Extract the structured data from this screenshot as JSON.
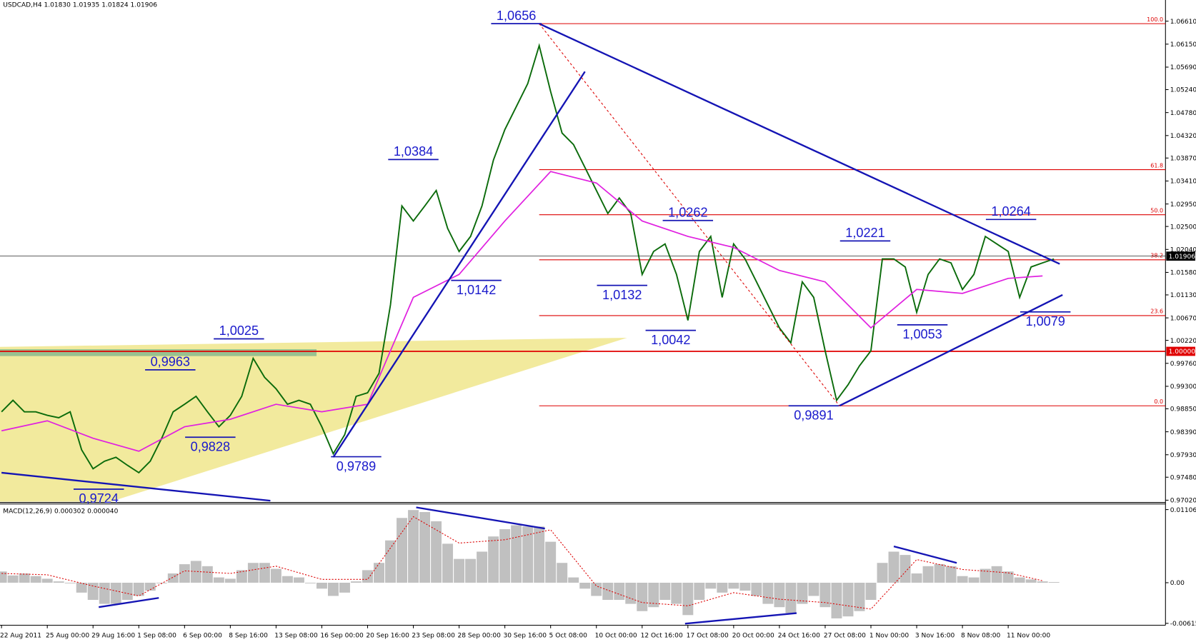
{
  "chart_data": [
    {
      "type": "line",
      "title": "USDCAD,H4  1.01830 1.01935 1.01824 1.01906",
      "xlim": [
        0,
        407
      ],
      "ylim": [
        0.9699,
        1.0685
      ],
      "yticks": [
        {
          "value": 1.0661,
          "label": "1.06610"
        },
        {
          "value": 1.0615,
          "label": "1.06150"
        },
        {
          "value": 1.0569,
          "label": "1.05690"
        },
        {
          "value": 1.0524,
          "label": "1.05240"
        },
        {
          "value": 1.0478,
          "label": "1.04780"
        },
        {
          "value": 1.0432,
          "label": "1.04320"
        },
        {
          "value": 1.0387,
          "label": "1.03870"
        },
        {
          "value": 1.0341,
          "label": "1.03410"
        },
        {
          "value": 1.0295,
          "label": "1.02950"
        },
        {
          "value": 1.025,
          "label": "1.02500"
        },
        {
          "value": 1.0204,
          "label": "1.02040"
        },
        {
          "value": 1.0158,
          "label": "1.01580"
        },
        {
          "value": 1.0113,
          "label": "1.01130"
        },
        {
          "value": 1.0067,
          "label": "1.00670"
        },
        {
          "value": 1.0022,
          "label": "1.00220"
        },
        {
          "value": 0.9976,
          "label": "0.99760"
        },
        {
          "value": 0.993,
          "label": "0.99300"
        },
        {
          "value": 0.9885,
          "label": "0.98850"
        },
        {
          "value": 0.9839,
          "label": "0.98390"
        },
        {
          "value": 0.9793,
          "label": "0.97930"
        },
        {
          "value": 0.9748,
          "label": "0.97480"
        },
        {
          "value": 0.9702,
          "label": "0.97020"
        }
      ],
      "series": [
        {
          "color": "#0b6b0b",
          "x": [
            0,
            4,
            8,
            12,
            16,
            20,
            24,
            28,
            32,
            36,
            40,
            44,
            48,
            52,
            56,
            60,
            64,
            68,
            72,
            76,
            80,
            84,
            88,
            92,
            96,
            100,
            104,
            108,
            112,
            116,
            120,
            124,
            128,
            132,
            136,
            140,
            144,
            148,
            152,
            156,
            160,
            164,
            168,
            172,
            176,
            180,
            184,
            188,
            192,
            196,
            200,
            204,
            208,
            212,
            216,
            220,
            224,
            228,
            232,
            236,
            240,
            244,
            248,
            252,
            256,
            260,
            264,
            268,
            272,
            276,
            280,
            284,
            288,
            292,
            296,
            300,
            304,
            308,
            312,
            316,
            320,
            324,
            328,
            332,
            336,
            340,
            344,
            348,
            352,
            356,
            360,
            364,
            368
          ],
          "values": [
            0.9879,
            0.9902,
            0.9879,
            0.9879,
            0.9872,
            0.9867,
            0.9879,
            0.9803,
            0.9765,
            0.978,
            0.9788,
            0.9772,
            0.9757,
            0.978,
            0.9826,
            0.9879,
            0.9894,
            0.991,
            0.9879,
            0.9849,
            0.9872,
            0.991,
            0.9986,
            0.9948,
            0.9925,
            0.9894,
            0.9902,
            0.9894,
            0.9849,
            0.9795,
            0.9833,
            0.991,
            0.9917,
            0.9956,
            1.0093,
            1.0291,
            1.0261,
            1.0291,
            1.0322,
            1.0246,
            1.02,
            1.023,
            1.0291,
            1.0383,
            1.0444,
            1.049,
            1.0536,
            1.0612,
            1.052,
            1.0437,
            1.0414,
            1.0368,
            1.0322,
            1.0276,
            1.0307,
            1.0276,
            1.0154,
            1.02,
            1.0215,
            1.0154,
            1.0062,
            1.02,
            1.023,
            1.0108,
            1.0215,
            1.0185,
            1.0139,
            1.0093,
            1.0047,
            1.0017,
            1.0139,
            1.0108,
            1.0001,
            0.9902,
            0.9933,
            0.9971,
            1.0001,
            1.0185,
            1.0185,
            1.0169,
            1.0078,
            1.0154,
            1.0185,
            1.0177,
            1.0124,
            1.0154,
            1.023,
            1.0215,
            1.02,
            1.0108,
            1.0169,
            1.0177,
            1.0185
          ]
        },
        {
          "color": "#e020e0",
          "x": [
            0,
            16,
            32,
            48,
            64,
            80,
            96,
            112,
            128,
            144,
            160,
            176,
            192,
            208,
            224,
            240,
            256,
            272,
            288,
            304,
            320,
            336,
            352,
            364
          ],
          "values": [
            0.9841,
            0.9861,
            0.9826,
            0.98,
            0.9849,
            0.9864,
            0.9894,
            0.9879,
            0.9894,
            1.0108,
            1.0154,
            1.0261,
            1.036,
            1.0337,
            1.0261,
            1.023,
            1.0208,
            1.0162,
            1.0139,
            1.0047,
            1.0124,
            1.0116,
            1.0146,
            1.0151
          ]
        }
      ],
      "fib": {
        "from": 1.0656,
        "to": 0.9891,
        "start": 188,
        "color": "#dd0000",
        "levels": [
          {
            "value": 100,
            "label": "100.0"
          },
          {
            "value": 61.8,
            "label": "61.8"
          },
          {
            "value": 50,
            "label": "50.0"
          },
          {
            "value": 38.2,
            "label": "38.2"
          },
          {
            "value": 23.6,
            "label": "23.6"
          },
          {
            "value": 0,
            "label": "0.0"
          }
        ]
      },
      "lines": [
        {
          "value": 1,
          "label": "1.00000",
          "color": "#e00000"
        },
        {
          "value": 1.01906,
          "label": "1.01906",
          "color": "#000000"
        }
      ],
      "trendlines": [
        {
          "x": [
            188,
            370
          ],
          "y": [
            1.0656,
            1.0175
          ],
          "color": "#1414b4"
        },
        {
          "x": [
            293,
            371
          ],
          "y": [
            0.9891,
            1.0113
          ],
          "color": "#1414b4"
        },
        {
          "x": [
            116,
            204
          ],
          "y": [
            0.9788,
            1.056
          ],
          "color": "#1414b4"
        },
        {
          "x": [
            0,
            94
          ],
          "y": [
            0.9757,
            0.9701
          ],
          "color": "#1414b4"
        },
        {
          "x": [
            188,
            293
          ],
          "y": [
            1.0656,
            0.9891
          ],
          "color": "#dd0000",
          "dashed": true
        }
      ],
      "annotations": [
        {
          "label": "1,0656",
          "value": 1.0656,
          "x": 180,
          "side": "above"
        },
        {
          "label": "1,0384",
          "value": 1.0384,
          "x": 144,
          "side": "above"
        },
        {
          "label": "1,0142",
          "value": 1.0142,
          "x": 166,
          "side": "below"
        },
        {
          "label": "1,0025",
          "value": 1.0025,
          "x": 83,
          "side": "above"
        },
        {
          "label": "0,9963",
          "value": 0.9963,
          "x": 59,
          "side": "above"
        },
        {
          "label": "0,9828",
          "value": 0.9828,
          "x": 73,
          "side": "below"
        },
        {
          "label": "0,9789",
          "value": 0.9789,
          "x": 124,
          "side": "below"
        },
        {
          "label": "0,9724",
          "value": 0.9724,
          "x": 34,
          "side": "below"
        },
        {
          "label": "1,0132",
          "value": 1.0132,
          "x": 217,
          "side": "below"
        },
        {
          "label": "1,0042",
          "value": 1.0042,
          "x": 234,
          "side": "below"
        },
        {
          "label": "1,0262",
          "value": 1.0262,
          "x": 240,
          "side": "above"
        },
        {
          "label": "0,9891",
          "value": 0.9891,
          "x": 284,
          "side": "below"
        },
        {
          "label": "1,0221",
          "value": 1.0221,
          "x": 302,
          "side": "above"
        },
        {
          "label": "1,0053",
          "value": 1.0053,
          "x": 322,
          "side": "below"
        },
        {
          "label": "1,0264",
          "value": 1.0264,
          "x": 353,
          "side": "above"
        },
        {
          "label": "1,0079",
          "value": 1.0079,
          "x": 365,
          "side": "below"
        }
      ]
    },
    {
      "type": "bar",
      "title": "MACD(12,26,9) 0.000302 0.000040",
      "color": "#c0c0c0",
      "xlim": [
        0,
        407
      ],
      "ylim": [
        -0.0062,
        0.0118
      ],
      "yticks": [
        {
          "value": 0.011067,
          "label": "0.011067"
        },
        {
          "value": 0,
          "label": "0.00"
        },
        {
          "value": -0.00615,
          "label": "-0.00615"
        }
      ],
      "xticks": [
        {
          "value": 0,
          "label": "22 Aug 2011"
        },
        {
          "value": 16,
          "label": "25 Aug 00:00"
        },
        {
          "value": 32,
          "label": "29 Aug 16:00"
        },
        {
          "value": 48,
          "label": "1 Sep 08:00"
        },
        {
          "value": 64,
          "label": "6 Sep 00:00"
        },
        {
          "value": 80,
          "label": "8 Sep 16:00"
        },
        {
          "value": 96,
          "label": "13 Sep 08:00"
        },
        {
          "value": 112,
          "label": "16 Sep 00:00"
        },
        {
          "value": 128,
          "label": "20 Sep 16:00"
        },
        {
          "value": 144,
          "label": "23 Sep 08:00"
        },
        {
          "value": 160,
          "label": "28 Sep 00:00"
        },
        {
          "value": 176,
          "label": "30 Sep 16:00"
        },
        {
          "value": 192,
          "label": "5 Oct 08:00"
        },
        {
          "value": 208,
          "label": "10 Oct 00:00"
        },
        {
          "value": 224,
          "label": "12 Oct 16:00"
        },
        {
          "value": 240,
          "label": "17 Oct 08:00"
        },
        {
          "value": 256,
          "label": "20 Oct 00:00"
        },
        {
          "value": 272,
          "label": "24 Oct 16:00"
        },
        {
          "value": 288,
          "label": "27 Oct 08:00"
        },
        {
          "value": 304,
          "label": "1 Nov 00:00"
        },
        {
          "value": 320,
          "label": "3 Nov 16:00"
        },
        {
          "value": 336,
          "label": "8 Nov 08:00"
        },
        {
          "value": 352,
          "label": "11 Nov 00:00"
        }
      ],
      "x": [
        0,
        4,
        8,
        12,
        16,
        20,
        24,
        28,
        32,
        36,
        40,
        44,
        48,
        52,
        56,
        60,
        64,
        68,
        72,
        76,
        80,
        84,
        88,
        92,
        96,
        100,
        104,
        108,
        112,
        116,
        120,
        124,
        128,
        132,
        136,
        140,
        144,
        148,
        152,
        156,
        160,
        164,
        168,
        172,
        176,
        180,
        184,
        188,
        192,
        196,
        200,
        204,
        208,
        212,
        216,
        220,
        224,
        228,
        232,
        236,
        240,
        244,
        248,
        252,
        256,
        260,
        264,
        268,
        272,
        276,
        280,
        284,
        288,
        292,
        296,
        300,
        304,
        308,
        312,
        316,
        320,
        324,
        328,
        332,
        336,
        340,
        344,
        348,
        352,
        356,
        360,
        364,
        368
      ],
      "values": [
        0.0017,
        0.0011,
        0.0014,
        0.001,
        0.0006,
        0.0002,
        -0.0001,
        -0.0015,
        -0.0026,
        -0.0032,
        -0.0032,
        -0.0026,
        -0.002,
        -0.0012,
        -0.0001,
        0.0014,
        0.0028,
        0.0033,
        0.0025,
        0.0008,
        0.0006,
        0.0019,
        0.003,
        0.003,
        0.0021,
        0.001,
        0.0008,
        -0.0001,
        -0.0009,
        -0.002,
        -0.0015,
        0.0002,
        0.0019,
        0.003,
        0.0064,
        0.0098,
        0.011,
        0.0107,
        0.0093,
        0.0059,
        0.0036,
        0.0036,
        0.0047,
        0.007,
        0.0081,
        0.0087,
        0.0085,
        0.0085,
        0.0062,
        0.003,
        0.0008,
        -0.0009,
        -0.002,
        -0.0026,
        -0.0026,
        -0.0032,
        -0.0043,
        -0.0037,
        -0.0026,
        -0.0032,
        -0.0049,
        -0.0026,
        -0.0009,
        -0.0015,
        -0.0009,
        -0.0012,
        -0.002,
        -0.0032,
        -0.0037,
        -0.0046,
        -0.0032,
        -0.002,
        -0.0037,
        -0.0054,
        -0.0051,
        -0.0043,
        -0.0026,
        0.003,
        0.0047,
        0.0042,
        0.0014,
        0.0025,
        0.0028,
        0.0025,
        0.001,
        0.0008,
        0.0021,
        0.0025,
        0.0017,
        0.0008,
        0.0005,
        0.0002,
        0.0001
      ],
      "signal": {
        "color": "#dd0000",
        "x": [
          0,
          16,
          32,
          48,
          64,
          80,
          96,
          112,
          128,
          144,
          160,
          176,
          192,
          208,
          224,
          240,
          256,
          272,
          288,
          304,
          320,
          336,
          352,
          364
        ],
        "values": [
          0.0014,
          0.0012,
          -0.0005,
          -0.002,
          0.0018,
          0.0014,
          0.0025,
          0.0005,
          0.0005,
          0.01,
          0.006,
          0.0065,
          0.008,
          -0.0005,
          -0.003,
          -0.0035,
          -0.0015,
          -0.0025,
          -0.003,
          -0.004,
          0.0035,
          0.002,
          0.0015,
          0.0003
        ]
      },
      "trendlines": [
        {
          "x": [
            34,
            55
          ],
          "y": [
            -0.0037,
            -0.0023
          ],
          "color": "#1414b4"
        },
        {
          "x": [
            145,
            190
          ],
          "y": [
            0.0114,
            0.0082
          ],
          "color": "#1414b4"
        },
        {
          "x": [
            239,
            278
          ],
          "y": [
            -0.0062,
            -0.0046
          ],
          "color": "#1414b4"
        },
        {
          "x": [
            312,
            334
          ],
          "y": [
            0.0055,
            0.003
          ],
          "color": "#1414b4"
        }
      ]
    }
  ]
}
